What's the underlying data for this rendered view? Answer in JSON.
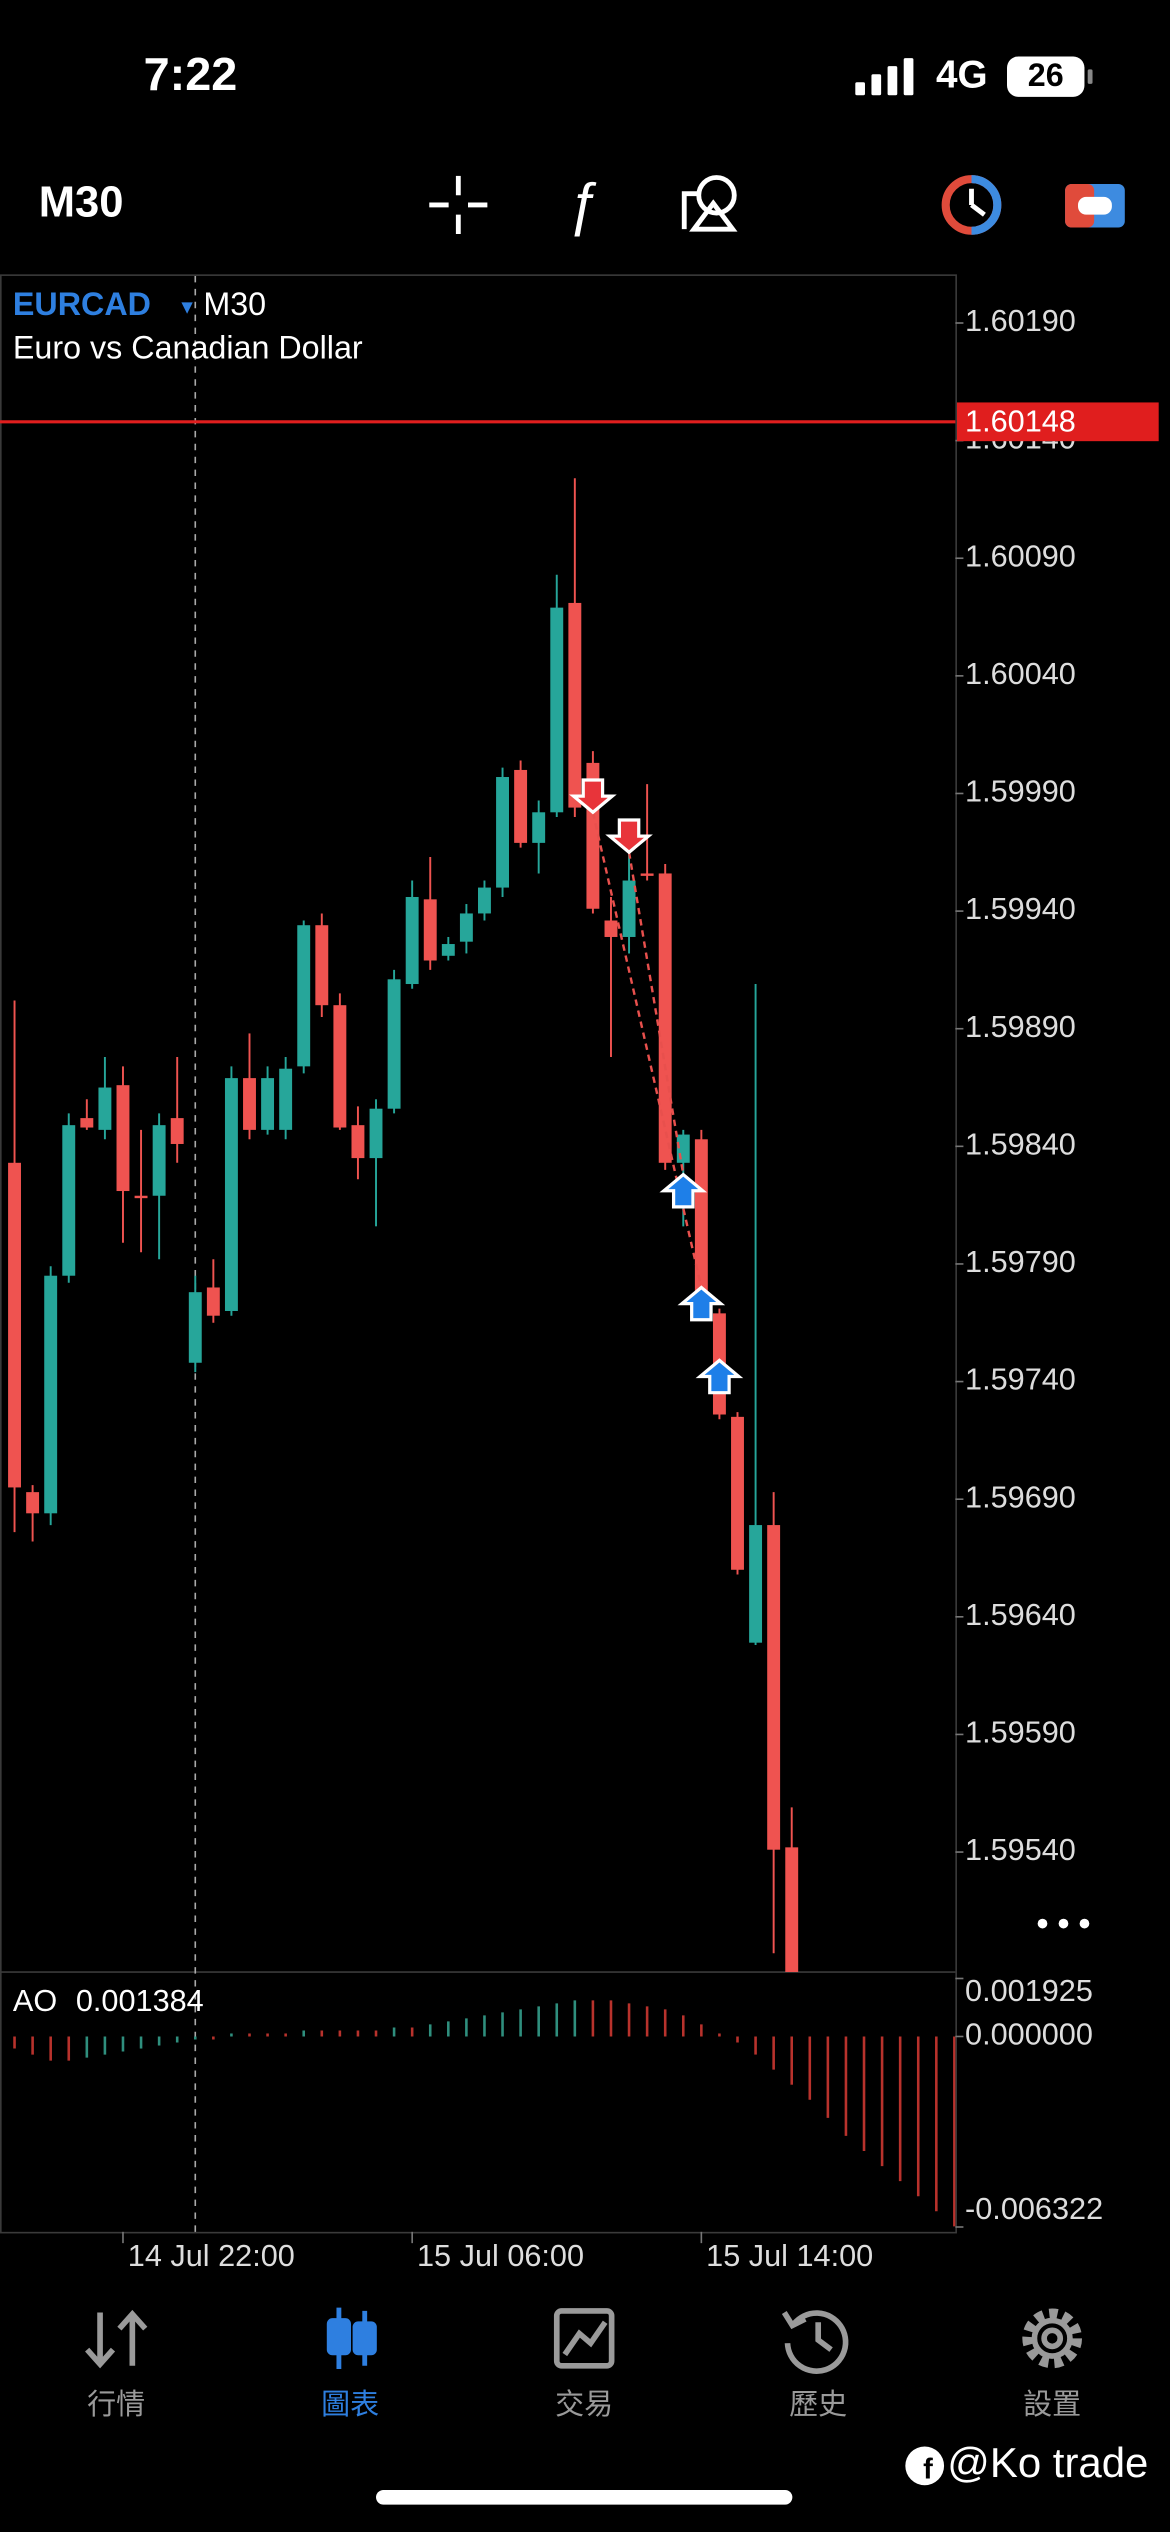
{
  "status_bar": {
    "time": "7:22",
    "network": "4G",
    "battery": "26"
  },
  "toolbar": {
    "timeframe": "M30"
  },
  "chart_data": {
    "type": "candlestick",
    "symbol": "EURCAD",
    "timeframe": "M30",
    "title": "Euro vs Canadian Dollar",
    "up_color": "#26a69a",
    "down_color": "#ef5350",
    "categories": [
      null,
      null,
      null,
      null,
      null,
      null,
      "14 Jul 22:00",
      null,
      null,
      null,
      null,
      null,
      null,
      null,
      null,
      null,
      null,
      null,
      null,
      null,
      null,
      null,
      "15 Jul 06:00",
      null,
      null,
      null,
      null,
      null,
      null,
      null,
      null,
      null,
      null,
      null,
      null,
      null,
      null,
      null,
      "15 Jul 14:00",
      null,
      null,
      null,
      null,
      null
    ],
    "open": [
      1.59833,
      1.59693,
      1.59684,
      1.59785,
      1.59852,
      1.59847,
      1.59866,
      1.59819,
      1.59819,
      1.59852,
      1.59748,
      1.5978,
      1.5977,
      1.59869,
      1.59847,
      1.59847,
      1.59874,
      1.59934,
      1.599,
      1.59849,
      1.59835,
      1.59856,
      1.59909,
      1.59945,
      1.59921,
      1.59927,
      1.59939,
      1.5995,
      1.6,
      1.59969,
      1.59982,
      1.60071,
      1.60003,
      1.59936,
      1.59929,
      1.59956,
      1.59956,
      1.59833,
      1.59843,
      1.59769,
      1.59725,
      1.59629,
      1.59679,
      1.59542
    ],
    "high": [
      1.59902,
      1.59696,
      1.59789,
      1.59854,
      1.5986,
      1.59878,
      1.59874,
      1.59847,
      1.59854,
      1.59878,
      1.59785,
      1.59792,
      1.59874,
      1.59888,
      1.59874,
      1.59878,
      1.59936,
      1.59939,
      1.59905,
      1.59857,
      1.5986,
      1.59915,
      1.59953,
      1.59963,
      1.59929,
      1.59943,
      1.59953,
      1.60001,
      1.60004,
      1.59987,
      1.60083,
      1.60124,
      1.60008,
      1.59946,
      1.5997,
      1.59994,
      1.5996,
      1.59847,
      1.59847,
      1.59771,
      1.59727,
      1.59909,
      1.59693,
      1.59559
    ],
    "low": [
      1.59676,
      1.59672,
      1.59679,
      1.59782,
      1.59847,
      1.59843,
      1.59799,
      1.59795,
      1.59792,
      1.59833,
      1.59744,
      1.59765,
      1.59768,
      1.59843,
      1.59845,
      1.59843,
      1.59871,
      1.59895,
      1.59847,
      1.59826,
      1.59806,
      1.59854,
      1.59907,
      1.59915,
      1.59919,
      1.59922,
      1.59936,
      1.59946,
      1.59967,
      1.59956,
      1.5998,
      1.5998,
      1.59939,
      1.59878,
      1.59922,
      1.59953,
      1.5983,
      1.59806,
      1.59768,
      1.59724,
      1.59658,
      1.59628,
      1.59497,
      1.5946
    ],
    "close": [
      1.59695,
      1.59684,
      1.59785,
      1.59849,
      1.59848,
      1.59865,
      1.59821,
      1.59818,
      1.59849,
      1.59841,
      1.59778,
      1.59768,
      1.59869,
      1.59847,
      1.59869,
      1.59873,
      1.59934,
      1.599,
      1.59848,
      1.59835,
      1.59856,
      1.59911,
      1.59946,
      1.59919,
      1.59926,
      1.59939,
      1.5995,
      1.59997,
      1.59969,
      1.59982,
      1.60069,
      1.59984,
      1.59941,
      1.59929,
      1.59953,
      1.59955,
      1.59833,
      1.59845,
      1.5977,
      1.59726,
      1.5966,
      1.59679,
      1.59541,
      1.5948
    ],
    "ylim": [
      1.59489,
      1.6021
    ],
    "yticks": [
      {
        "value": 1.6019,
        "label": "1.60190"
      },
      {
        "value": 1.6014,
        "label": "1.60140"
      },
      {
        "value": 1.6009,
        "label": "1.60090"
      },
      {
        "value": 1.6004,
        "label": "1.60040"
      },
      {
        "value": 1.5999,
        "label": "1.59990"
      },
      {
        "value": 1.5994,
        "label": "1.59940"
      },
      {
        "value": 1.5989,
        "label": "1.59890"
      },
      {
        "value": 1.5984,
        "label": "1.59840"
      },
      {
        "value": 1.5979,
        "label": "1.59790"
      },
      {
        "value": 1.5974,
        "label": "1.59740"
      },
      {
        "value": 1.5969,
        "label": "1.59690"
      },
      {
        "value": 1.5964,
        "label": "1.59640"
      },
      {
        "value": 1.5959,
        "label": "1.59590"
      },
      {
        "value": 1.5954,
        "label": "1.59540"
      }
    ],
    "current_price": {
      "value": 1.60148,
      "label": "1.60148"
    },
    "current_price_color": "#e01e1e",
    "trades": [
      {
        "side": "sell",
        "index": 32,
        "price": 1.59982
      },
      {
        "side": "sell",
        "index": 34,
        "price": 1.59965
      },
      {
        "side": "buy",
        "index": 37,
        "price": 1.59828
      },
      {
        "side": "buy",
        "index": 38,
        "price": 1.5978
      },
      {
        "side": "buy",
        "index": 39,
        "price": 1.59749
      }
    ]
  },
  "indicator": {
    "type": "bar",
    "name": "AO",
    "value": 0.001384,
    "up_color": "#2f8f7e",
    "down_color": "#b8322c",
    "values": [
      -0.0004,
      -0.0006,
      -0.0008,
      -0.0008,
      -0.0007,
      -0.0006,
      -0.0005,
      -0.0004,
      -0.0003,
      -0.0002,
      -0.0001,
      -0.0001,
      0.0001,
      0.0001,
      0.0001,
      0.0001,
      0.0002,
      0.0002,
      0.0002,
      0.0002,
      0.0002,
      0.0003,
      0.0003,
      0.0004,
      0.0005,
      0.0006,
      0.0007,
      0.0008,
      0.0009,
      0.001,
      0.0011,
      0.0012,
      0.0012,
      0.0012,
      0.0011,
      0.001,
      0.0009,
      0.0007,
      0.0004,
      0.0001,
      -0.0002,
      -0.0006,
      -0.0011,
      -0.0016,
      -0.0021,
      -0.0027,
      -0.0033,
      -0.0038,
      -0.0043,
      -0.0048,
      -0.0053,
      -0.0058,
      -0.0063
    ],
    "ylim": [
      -0.006322,
      0.001925
    ],
    "yticks": [
      0.001925,
      {
        "value": 0,
        "label": "0.000000"
      },
      -0.006322
    ]
  },
  "nav": {
    "items": [
      "行情",
      "圖表",
      "交易",
      "歷史",
      "設置"
    ],
    "active": 1
  },
  "watermark": "@Ko trade"
}
